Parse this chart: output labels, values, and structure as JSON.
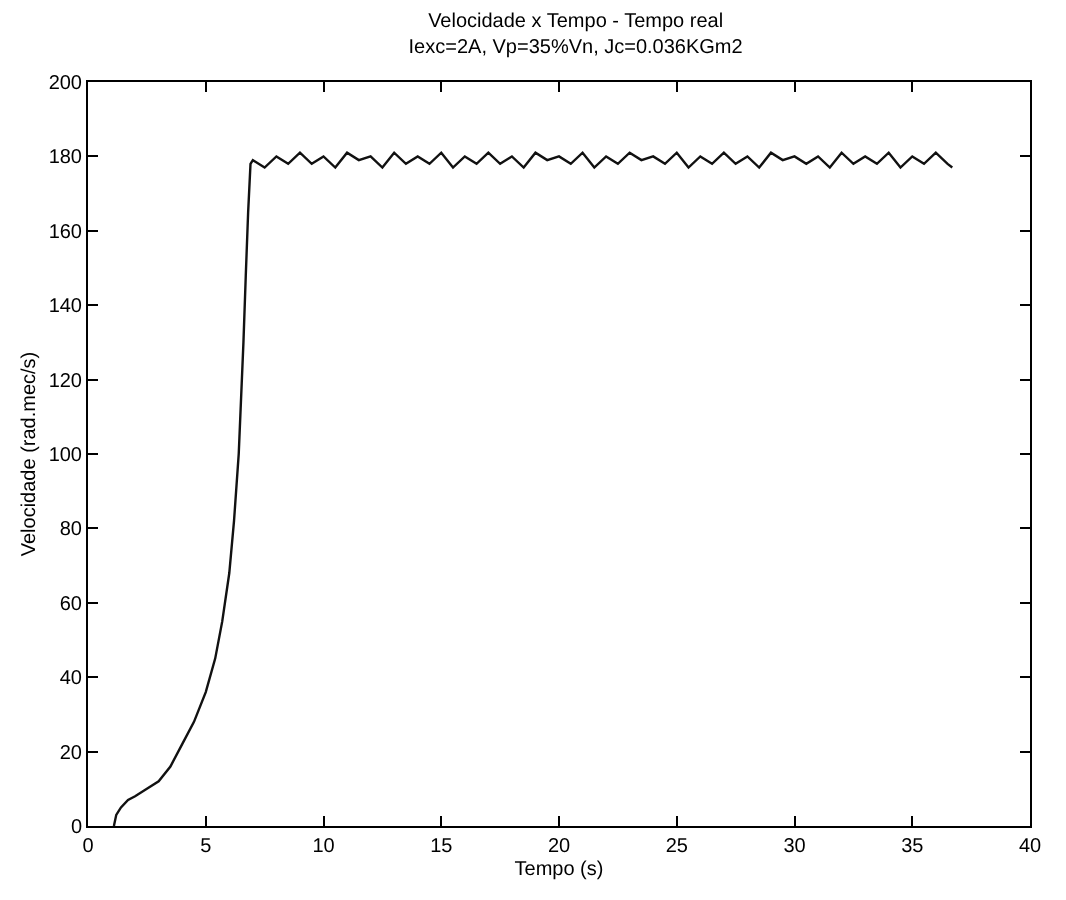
{
  "chart_data": {
    "type": "line",
    "title": "Velocidade x Tempo - Tempo real",
    "subtitle": "Iexc=2A, Vp=35%Vn, Jc=0.036KGm2",
    "xlabel": "Tempo (s)",
    "ylabel": "Velocidade (rad.mec/s)",
    "series": [
      {
        "color": "#111111",
        "x": [
          1.1,
          1.2,
          1.4,
          1.7,
          2.0,
          2.5,
          3.0,
          3.5,
          4.0,
          4.5,
          5.0,
          5.4,
          5.7,
          6.0,
          6.2,
          6.4,
          6.5,
          6.6,
          6.7,
          6.8,
          6.9,
          7.0,
          7.5,
          8.0,
          8.5,
          9.0,
          9.5,
          10.0,
          10.5,
          11.0,
          11.5,
          12.0,
          12.5,
          13.0,
          13.5,
          14.0,
          14.5,
          15.0,
          15.5,
          16.0,
          16.5,
          17.0,
          17.5,
          18.0,
          18.5,
          19.0,
          19.5,
          20.0,
          20.5,
          21.0,
          21.5,
          22.0,
          22.5,
          23.0,
          23.5,
          24.0,
          24.5,
          25.0,
          25.5,
          26.0,
          26.5,
          27.0,
          27.5,
          28.0,
          28.5,
          29.0,
          29.5,
          30.0,
          30.5,
          31.0,
          31.5,
          32.0,
          32.5,
          33.0,
          33.5,
          34.0,
          34.5,
          35.0,
          35.5,
          36.0,
          36.5,
          36.7
        ],
        "values": [
          0,
          3,
          5,
          7,
          8,
          10,
          12,
          16,
          22,
          28,
          36,
          45,
          55,
          68,
          82,
          100,
          115,
          130,
          148,
          165,
          178,
          179,
          177,
          180,
          178,
          181,
          178,
          180,
          177,
          181,
          179,
          180,
          177,
          181,
          178,
          180,
          178,
          181,
          177,
          180,
          178,
          181,
          178,
          180,
          177,
          181,
          179,
          180,
          178,
          181,
          177,
          180,
          178,
          181,
          179,
          180,
          178,
          181,
          177,
          180,
          178,
          181,
          178,
          180,
          177,
          181,
          179,
          180,
          178,
          180,
          177,
          181,
          178,
          180,
          178,
          181,
          177,
          180,
          178,
          181,
          178,
          177
        ]
      }
    ],
    "xlim": [
      0,
      40
    ],
    "xticks": [
      0,
      5,
      10,
      15,
      20,
      25,
      30,
      35,
      40
    ],
    "ylim": [
      0,
      200
    ],
    "yticks": [
      0,
      20,
      40,
      60,
      80,
      100,
      120,
      140,
      160,
      180,
      200
    ],
    "legend": false,
    "line_style": "solid",
    "marker": "none"
  }
}
